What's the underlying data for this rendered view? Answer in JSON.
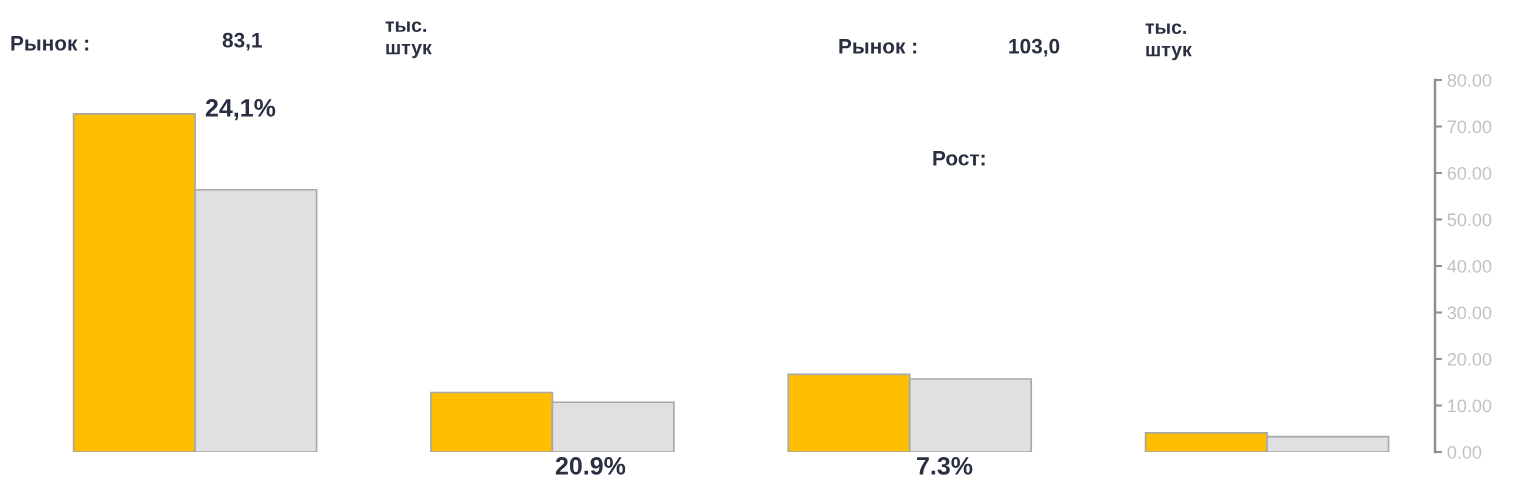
{
  "chart_data": {
    "type": "bar",
    "categories": [
      null,
      null,
      null,
      null
    ],
    "series": [
      {
        "color": "#fdbf00",
        "values": [
          72.7,
          12.8,
          16.7,
          4.1
        ]
      },
      {
        "color": "#e0e0e0",
        "values": [
          56.4,
          10.7,
          15.7,
          3.3
        ]
      }
    ],
    "ylim": [
      0,
      80
    ],
    "yticks": [
      {
        "value": 0,
        "label": "0.00"
      },
      {
        "value": 10,
        "label": "10.00"
      },
      {
        "value": 20,
        "label": "20.00"
      },
      {
        "value": 30,
        "label": "30.00"
      },
      {
        "value": 40,
        "label": "40.00"
      },
      {
        "value": 50,
        "label": "50.00"
      },
      {
        "value": 60,
        "label": "60.00"
      },
      {
        "value": 70,
        "label": "70.00"
      },
      {
        "value": 80,
        "label": "80.00"
      }
    ],
    "tick_labels": "y",
    "grid": false,
    "legend": false,
    "annotations": [
      "Рынок :",
      "83,1",
      "тыс.\nштук",
      "24,1%",
      "20.9%",
      "Рынок :",
      "103,0",
      "тыс.\nштук",
      "Рост:",
      "7.3%"
    ]
  }
}
